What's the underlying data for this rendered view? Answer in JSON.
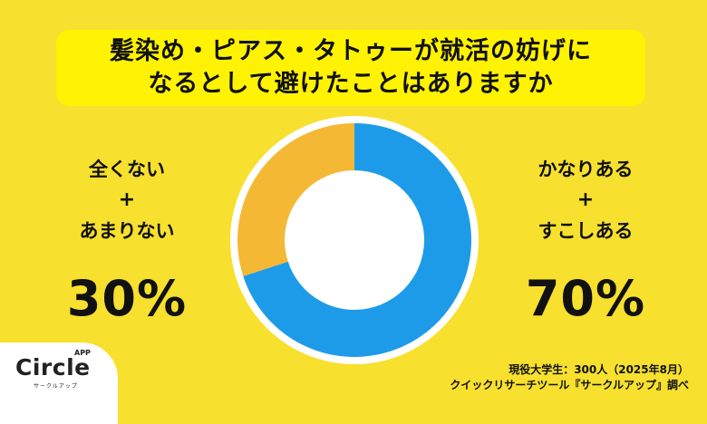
{
  "title": {
    "line1": "髪染め・ピアス・タトゥーが就活の妨げに",
    "line2": "なるとして避けたことはありますか"
  },
  "left_panel": {
    "label1": "全くない",
    "plus": "+",
    "label2": "あまりない",
    "percent": "30%"
  },
  "right_panel": {
    "label1": "かなりある",
    "plus": "+",
    "label2": "すこしある",
    "percent": "70%"
  },
  "logo": {
    "name": "Circle",
    "badge": "APP",
    "sub": "サークルアップ"
  },
  "source": {
    "line1": "現役大学生：300人（2025年8月）",
    "line2": "クイックリサーチツール『サークルアップ』調べ"
  },
  "colors": {
    "background": "#f7e02e",
    "title_bg": "#fff203",
    "yes_segment": "#1e9be8",
    "no_segment": "#f4b834"
  },
  "chart_data": {
    "type": "pie",
    "donut": true,
    "title": "髪染め・ピアス・タトゥーが就活の妨げになるとして避けたことはありますか",
    "categories": [
      "かなりある+すこしある",
      "全くない+あまりない"
    ],
    "values": [
      70,
      30
    ],
    "colors": [
      "#1e9be8",
      "#f4b834"
    ],
    "unit": "%",
    "start_angle": "12 o'clock, clockwise",
    "sample": "現役大学生：300人（2025年8月）"
  }
}
